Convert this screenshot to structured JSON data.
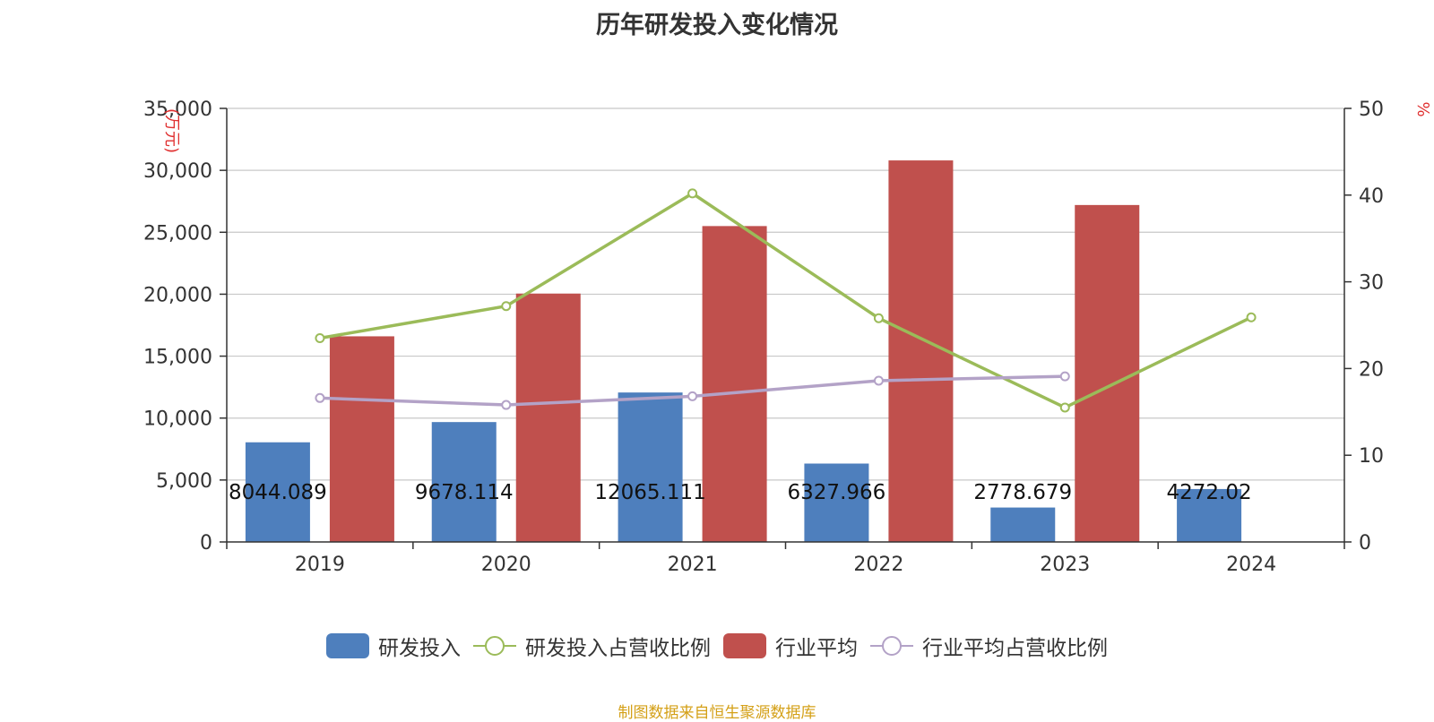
{
  "chart_data": {
    "type": "bar",
    "title": "历年研发投入变化情况",
    "categories": [
      "2019",
      "2020",
      "2021",
      "2022",
      "2023",
      "2024"
    ],
    "y_left": {
      "label": "(万元)",
      "ylim": [
        0,
        35000
      ],
      "ticks": [
        "0",
        "5,000",
        "10,000",
        "15,000",
        "20,000",
        "25,000",
        "30,000",
        "35,000"
      ]
    },
    "y_right": {
      "label": "%",
      "ylim": [
        0,
        50
      ],
      "ticks": [
        "0",
        "10",
        "20",
        "30",
        "40",
        "50"
      ]
    },
    "grid": true,
    "legend_position": "bottom",
    "series": [
      {
        "name": "研发投入",
        "kind": "bar",
        "axis": "left",
        "color": "#4e7fbd",
        "values": [
          8044.089,
          9678.114,
          12065.111,
          6327.966,
          2778.679,
          4272.02
        ],
        "labels": [
          "8044.089",
          "9678.114",
          "12065.111",
          "6327.966",
          "2778.679",
          "4272.02"
        ]
      },
      {
        "name": "研发投入占营收比例",
        "kind": "line",
        "axis": "right",
        "color": "#9bbb59",
        "values": [
          23.5,
          27.2,
          40.2,
          25.8,
          15.5,
          25.9
        ]
      },
      {
        "name": "行业平均",
        "kind": "bar",
        "axis": "left",
        "color": "#c0504d",
        "values": [
          16600,
          20050,
          25500,
          30800,
          27200,
          null
        ]
      },
      {
        "name": "行业平均占营收比例",
        "kind": "line",
        "axis": "right",
        "color": "#b3a2c7",
        "values": [
          16.6,
          15.8,
          16.8,
          18.6,
          19.1,
          null
        ]
      }
    ]
  },
  "source_note": "制图数据来自恒生聚源数据库"
}
